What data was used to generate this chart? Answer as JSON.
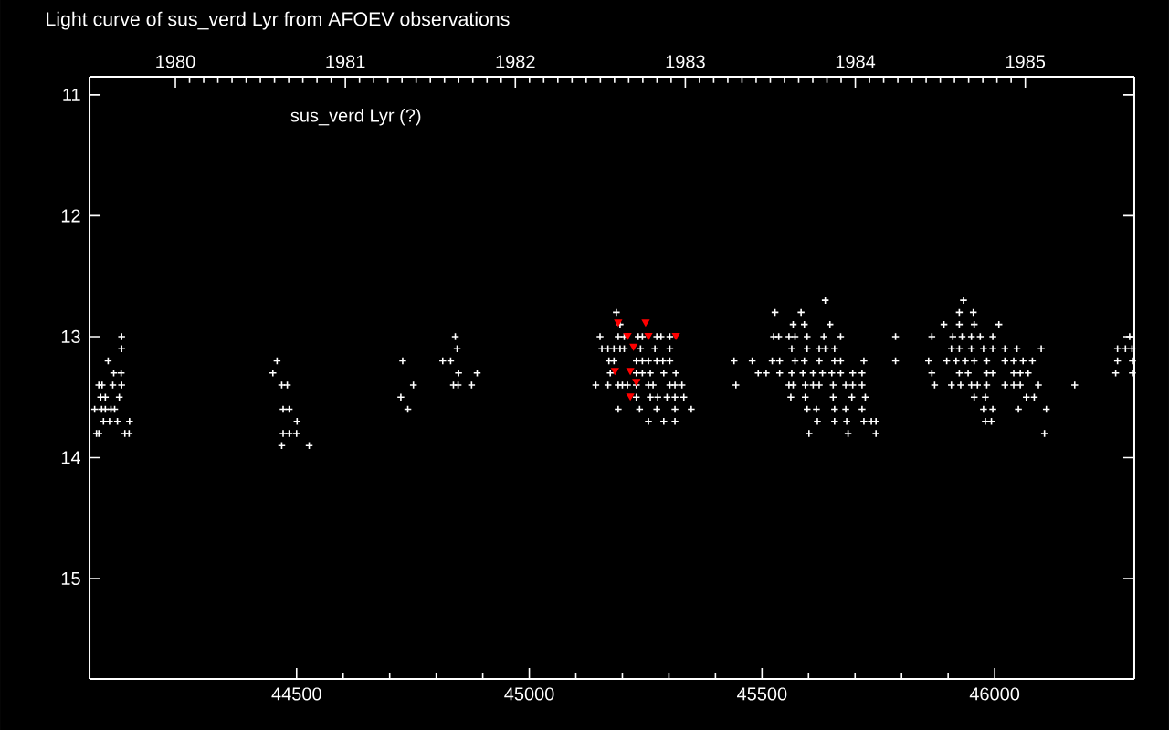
{
  "chart_data": {
    "type": "scatter",
    "title": "Light curve of sus_verd Lyr from AFOEV observations",
    "annotations": [
      "sus_verd Lyr (?)"
    ],
    "xlim": [
      44055,
      46300
    ],
    "xticks": [
      44500,
      45000,
      45500,
      46000
    ],
    "x2lim": [
      1979.495,
      1985.641
    ],
    "x2ticks": [
      1980,
      1981,
      1982,
      1983,
      1984,
      1985
    ],
    "ylim": [
      15.83,
      10.85
    ],
    "yticks": [
      11,
      12,
      13,
      14,
      15
    ],
    "series": [
      {
        "color": "#ffffff",
        "marker": "cross",
        "x": [
          44124,
          44124,
          44095,
          44107,
          44123,
          44075,
          44082,
          44105,
          44124,
          44079,
          44089,
          44119,
          44066,
          44081,
          44089,
          44101,
          44109,
          44085,
          44098,
          44115,
          44141,
          44070,
          44075,
          44131,
          44140,
          44458,
          44449,
          44468,
          44480,
          44471,
          44484,
          44501,
          44471,
          44484,
          44500,
          44468,
          44527,
          44841,
          44845,
          44728,
          44814,
          44831,
          44848,
          44888,
          44751,
          44837,
          44847,
          44876,
          44724,
          44739,
          45187,
          45195,
          45152,
          45191,
          45204,
          45234,
          45243,
          45274,
          45283,
          45302,
          45156,
          45169,
          45182,
          45195,
          45204,
          45239,
          45270,
          45302,
          45171,
          45182,
          45230,
          45243,
          45256,
          45274,
          45287,
          45302,
          45174,
          45230,
          45243,
          45260,
          45289,
          45315,
          45143,
          45169,
          45191,
          45200,
          45211,
          45230,
          45256,
          45266,
          45302,
          45313,
          45328,
          45230,
          45260,
          45276,
          45296,
          45313,
          45332,
          45191,
          45237,
          45274,
          45313,
          45348,
          45256,
          45289,
          45313,
          45636,
          45528,
          45584,
          45567,
          45591,
          45646,
          45525,
          45536,
          45558,
          45571,
          45597,
          45633,
          45669,
          45787,
          45564,
          45597,
          45623,
          45636,
          45656,
          45440,
          45479,
          45522,
          45538,
          45571,
          45591,
          45623,
          45656,
          45669,
          45719,
          45787,
          45492,
          45509,
          45538,
          45564,
          45588,
          45610,
          45630,
          45650,
          45669,
          45695,
          45715,
          45444,
          45558,
          45567,
          45593,
          45610,
          45623,
          45653,
          45680,
          45695,
          45715,
          45562,
          45593,
          45653,
          45693,
          45722,
          45597,
          45617,
          45656,
          45680,
          45715,
          45619,
          45656,
          45682,
          45719,
          45735,
          45745,
          45601,
          45685,
          45745,
          45933,
          45924,
          45954,
          45891,
          45924,
          45956,
          46009,
          45865,
          45910,
          45930,
          45950,
          45969,
          45996,
          46290,
          45907,
          45924,
          45950,
          45976,
          45996,
          46022,
          46048,
          46100,
          46264,
          46281,
          46295,
          45858,
          45897,
          45917,
          45937,
          45956,
          45983,
          46022,
          46041,
          46061,
          46081,
          46264,
          46296,
          45865,
          45924,
          45943,
          45983,
          45996,
          46041,
          46055,
          46072,
          46260,
          46296,
          45871,
          45907,
          45927,
          45950,
          45963,
          45983,
          46022,
          46041,
          46055,
          46094,
          46172,
          45956,
          45980,
          46068,
          46085,
          45976,
          45996,
          46051,
          46111,
          45980,
          45993,
          46107
        ],
        "values": [
          13.0,
          13.1,
          13.2,
          13.3,
          13.3,
          13.4,
          13.4,
          13.4,
          13.4,
          13.5,
          13.5,
          13.5,
          13.6,
          13.6,
          13.6,
          13.6,
          13.6,
          13.7,
          13.7,
          13.7,
          13.7,
          13.8,
          13.8,
          13.8,
          13.8,
          13.2,
          13.3,
          13.4,
          13.4,
          13.6,
          13.6,
          13.7,
          13.8,
          13.8,
          13.8,
          13.9,
          13.9,
          13.0,
          13.1,
          13.2,
          13.2,
          13.2,
          13.3,
          13.3,
          13.4,
          13.4,
          13.4,
          13.4,
          13.5,
          13.6,
          12.8,
          12.9,
          13.0,
          13.0,
          13.0,
          13.0,
          13.0,
          13.0,
          13.0,
          13.0,
          13.1,
          13.1,
          13.1,
          13.1,
          13.1,
          13.1,
          13.1,
          13.1,
          13.2,
          13.2,
          13.2,
          13.2,
          13.2,
          13.2,
          13.2,
          13.2,
          13.3,
          13.3,
          13.3,
          13.3,
          13.3,
          13.3,
          13.4,
          13.4,
          13.4,
          13.4,
          13.4,
          13.4,
          13.4,
          13.4,
          13.4,
          13.4,
          13.4,
          13.5,
          13.5,
          13.5,
          13.5,
          13.5,
          13.5,
          13.6,
          13.6,
          13.6,
          13.6,
          13.6,
          13.7,
          13.7,
          13.7,
          12.7,
          12.8,
          12.8,
          12.9,
          12.9,
          12.9,
          13.0,
          13.0,
          13.0,
          13.0,
          13.0,
          13.0,
          13.0,
          13.0,
          13.1,
          13.1,
          13.1,
          13.1,
          13.1,
          13.2,
          13.2,
          13.2,
          13.2,
          13.2,
          13.2,
          13.2,
          13.2,
          13.2,
          13.2,
          13.2,
          13.3,
          13.3,
          13.3,
          13.3,
          13.3,
          13.3,
          13.3,
          13.3,
          13.3,
          13.3,
          13.3,
          13.4,
          13.4,
          13.4,
          13.4,
          13.4,
          13.4,
          13.4,
          13.4,
          13.4,
          13.4,
          13.5,
          13.5,
          13.5,
          13.5,
          13.5,
          13.6,
          13.6,
          13.6,
          13.6,
          13.6,
          13.7,
          13.7,
          13.7,
          13.7,
          13.7,
          13.7,
          13.8,
          13.8,
          13.8,
          12.7,
          12.8,
          12.8,
          12.9,
          12.9,
          12.9,
          12.9,
          13.0,
          13.0,
          13.0,
          13.0,
          13.0,
          13.0,
          13.0,
          13.1,
          13.1,
          13.1,
          13.1,
          13.1,
          13.1,
          13.1,
          13.1,
          13.1,
          13.1,
          13.1,
          13.2,
          13.2,
          13.2,
          13.2,
          13.2,
          13.2,
          13.2,
          13.2,
          13.2,
          13.2,
          13.2,
          13.2,
          13.3,
          13.3,
          13.3,
          13.3,
          13.3,
          13.3,
          13.3,
          13.3,
          13.3,
          13.3,
          13.4,
          13.4,
          13.4,
          13.4,
          13.4,
          13.4,
          13.4,
          13.4,
          13.4,
          13.4,
          13.4,
          13.5,
          13.5,
          13.5,
          13.5,
          13.6,
          13.6,
          13.6,
          13.6,
          13.7,
          13.7,
          13.8
        ]
      },
      {
        "color": "#ff0000",
        "marker": "triangle",
        "x": [
          45191,
          45250,
          45211,
          45256,
          45315,
          45224,
          45184,
          45217,
          45230,
          45217
        ],
        "values": [
          12.88,
          12.88,
          12.99,
          12.99,
          12.99,
          13.08,
          13.28,
          13.28,
          13.37,
          13.49
        ]
      }
    ]
  }
}
